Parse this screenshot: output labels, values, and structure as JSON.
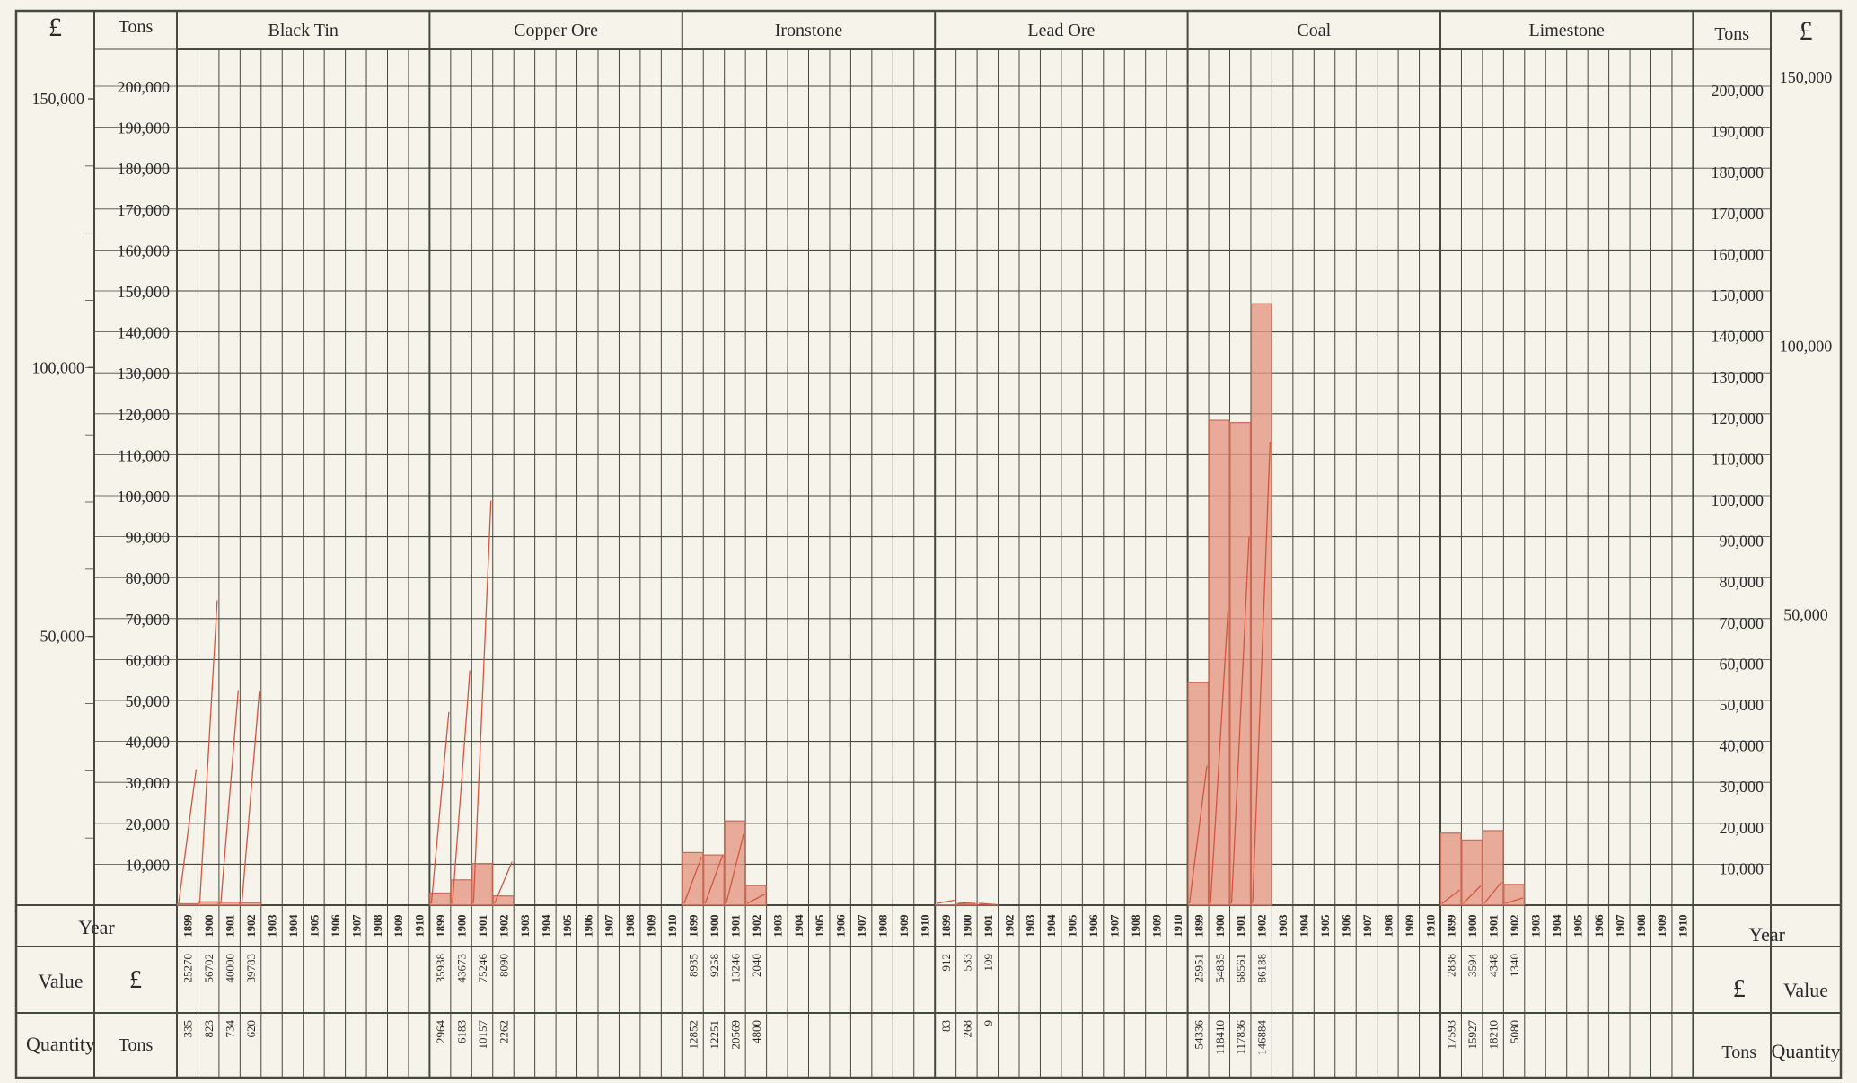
{
  "header": {
    "currency_symbol": "£",
    "tons_label": "Tons"
  },
  "rows": {
    "year_label": "Year",
    "value_label": "Value",
    "value_unit": "£",
    "quantity_label": "Quantity",
    "quantity_unit": "Tons"
  },
  "colors": {
    "paper": "#f6f3ea",
    "grid": "#45493e",
    "bar_fill": "#e49a88",
    "bar_stroke": "#c96a55",
    "value_line": "#d2563f"
  },
  "chart_data": {
    "type": "bar",
    "years": [
      "1899",
      "1900",
      "1901",
      "1902",
      "1903",
      "1904",
      "1905",
      "1906",
      "1907",
      "1908",
      "1909",
      "1910"
    ],
    "tons_axis": {
      "ylim": [
        0,
        200000
      ],
      "ticks": [
        "10,000",
        "20,000",
        "30,000",
        "40,000",
        "50,000",
        "60,000",
        "70,000",
        "80,000",
        "90,000",
        "100,000",
        "110,000",
        "120,000",
        "130,000",
        "140,000",
        "150,000",
        "160,000",
        "170,000",
        "180,000",
        "190,000",
        "200,000"
      ]
    },
    "value_axis": {
      "ylim": [
        0,
        200000
      ],
      "ticks": [
        "50,000",
        "100,000",
        "150,000"
      ],
      "tick_values": [
        50000,
        100000,
        150000
      ]
    },
    "series": [
      {
        "name": "Black Tin",
        "value": [
          "25270",
          "56702",
          "40000",
          "39783"
        ],
        "quantity": [
          "335",
          "823",
          "734",
          "620"
        ],
        "quantity_num": [
          335,
          823,
          734,
          620
        ],
        "value_num": [
          25270,
          56702,
          40000,
          39783
        ]
      },
      {
        "name": "Copper Ore",
        "value": [
          "35938",
          "43673",
          "75246",
          "8090"
        ],
        "quantity": [
          "2964",
          "6183",
          "10157",
          "2262"
        ],
        "quantity_num": [
          2964,
          6183,
          10157,
          2262
        ],
        "value_num": [
          35938,
          43673,
          75246,
          8090
        ]
      },
      {
        "name": "Ironstone",
        "value": [
          "8935",
          "9258",
          "13246",
          "2040"
        ],
        "quantity": [
          "12852",
          "12251",
          "20569",
          "4800"
        ],
        "quantity_num": [
          12852,
          12251,
          20569,
          4800
        ],
        "value_num": [
          8935,
          9258,
          13246,
          2040
        ]
      },
      {
        "name": "Lead Ore",
        "value": [
          "912",
          "533",
          "109"
        ],
        "quantity": [
          "83",
          "268",
          "9"
        ],
        "quantity_num": [
          83,
          268,
          9
        ],
        "value_num": [
          912,
          533,
          109
        ]
      },
      {
        "name": "Coal",
        "value": [
          "25951",
          "54835",
          "68561",
          "86188"
        ],
        "quantity": [
          "54336",
          "118410",
          "117836",
          "146884"
        ],
        "quantity_num": [
          54336,
          118410,
          117836,
          146884
        ],
        "value_num": [
          25951,
          54835,
          68561,
          86188
        ]
      },
      {
        "name": "Limestone",
        "value": [
          "2838",
          "3594",
          "4348",
          "1340"
        ],
        "quantity": [
          "17593",
          "15927",
          "18210",
          "5080"
        ],
        "quantity_num": [
          17593,
          15927,
          18210,
          5080
        ],
        "value_num": [
          2838,
          3594,
          4348,
          1340
        ]
      }
    ]
  }
}
